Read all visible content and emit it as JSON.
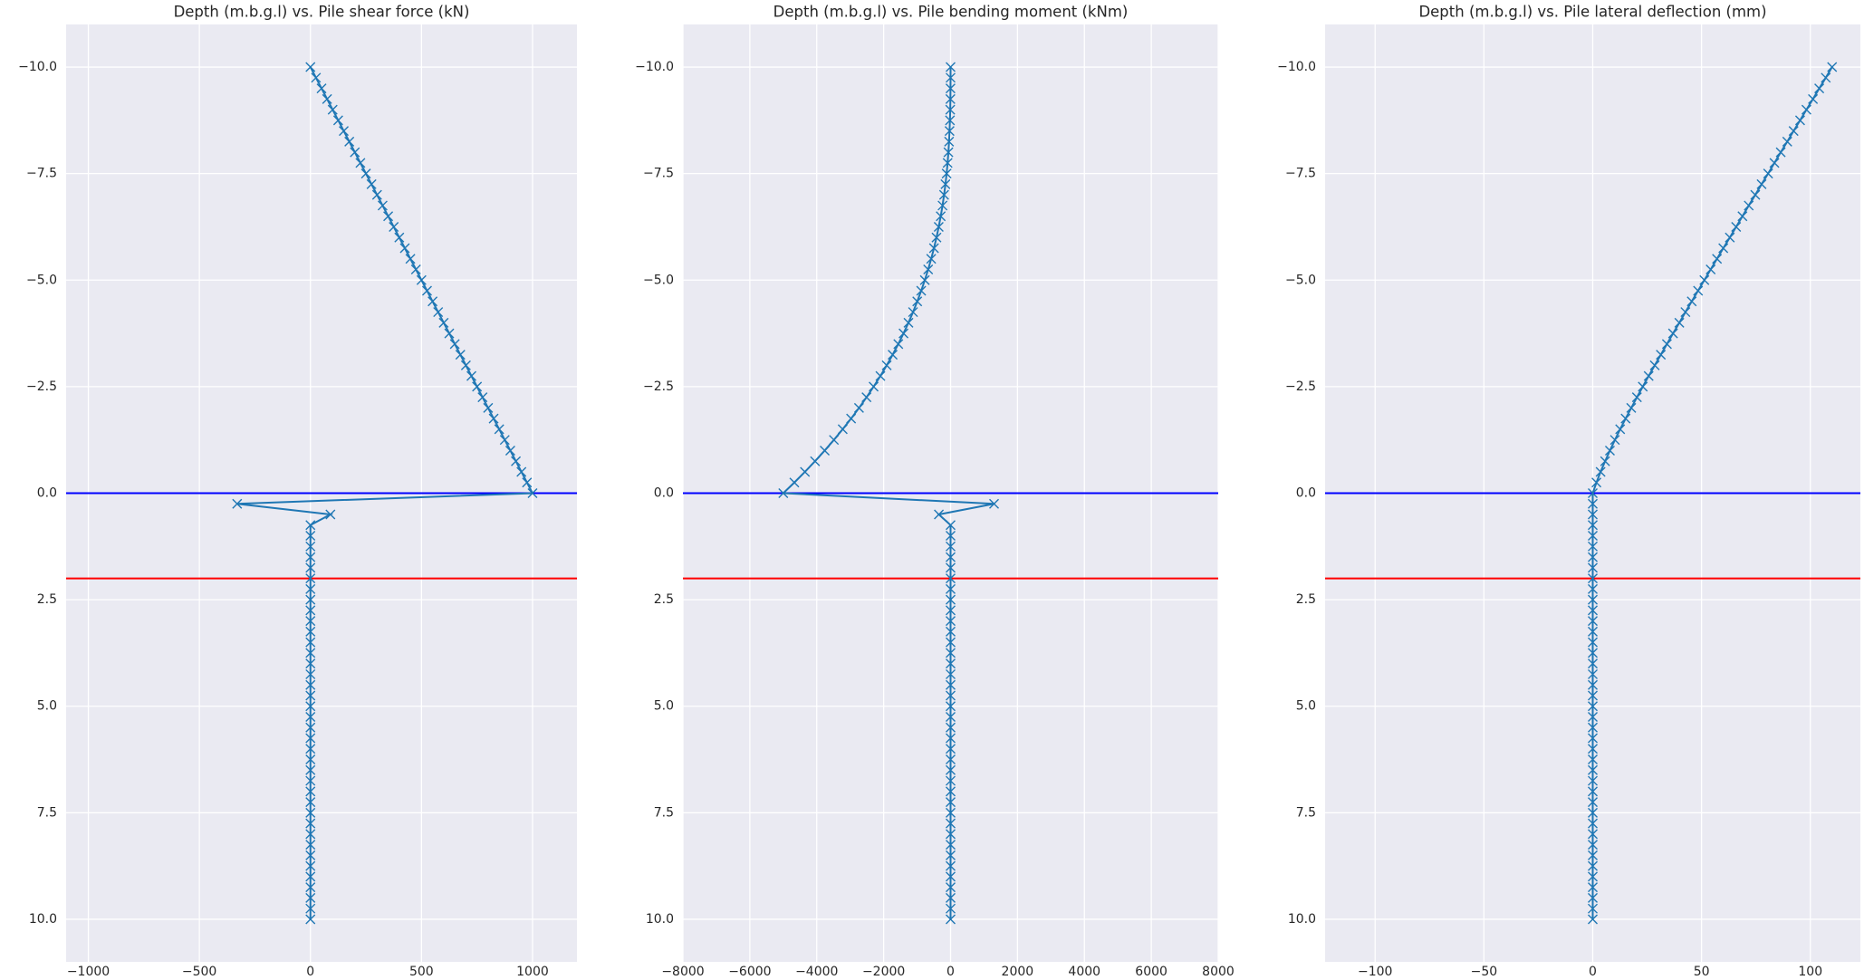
{
  "chart_data": [
    {
      "type": "line",
      "title": "Depth (m.b.g.l) vs. Pile shear force (kN)",
      "xlim": [
        -1100,
        1200
      ],
      "ylim": [
        11,
        -11
      ],
      "grid": true,
      "xticks": [
        {
          "value": -1000,
          "label": "−1000"
        },
        {
          "value": -500,
          "label": "−500"
        },
        0,
        500,
        1000
      ],
      "yticks": [
        {
          "value": -10,
          "label": "−10.0"
        },
        {
          "value": -7.5,
          "label": "−7.5"
        },
        {
          "value": -5,
          "label": "−5.0"
        },
        {
          "value": -2.5,
          "label": "−2.5"
        },
        {
          "value": 0,
          "label": "0.0"
        },
        {
          "value": 2.5,
          "label": "2.5"
        },
        {
          "value": 5,
          "label": "5.0"
        },
        {
          "value": 7.5,
          "label": "7.5"
        },
        {
          "value": 10,
          "label": "10.0"
        }
      ],
      "hlines": [
        {
          "value": 0,
          "color": "#0000ff"
        },
        {
          "value": 2,
          "color": "#ff0000"
        }
      ],
      "y": [
        -10,
        -9.75,
        -9.5,
        -9.25,
        -9,
        -8.75,
        -8.5,
        -8.25,
        -8,
        -7.75,
        -7.5,
        -7.25,
        -7,
        -6.75,
        -6.5,
        -6.25,
        -6,
        -5.75,
        -5.5,
        -5.25,
        -5,
        -4.75,
        -4.5,
        -4.25,
        -4,
        -3.75,
        -3.5,
        -3.25,
        -3,
        -2.75,
        -2.5,
        -2.25,
        -2,
        -1.75,
        -1.5,
        -1.25,
        -1,
        -0.75,
        -0.5,
        -0.25,
        0,
        0.25,
        0.5,
        0.75,
        1,
        1.25,
        1.5,
        1.75,
        2,
        2.25,
        2.5,
        2.75,
        3,
        3.25,
        3.5,
        3.75,
        4,
        4.25,
        4.5,
        4.75,
        5,
        5.25,
        5.5,
        5.75,
        6,
        6.25,
        6.5,
        6.75,
        7,
        7.25,
        7.5,
        7.75,
        8,
        8.25,
        8.5,
        8.75,
        9,
        9.25,
        9.5,
        9.75,
        10
      ],
      "series": [
        {
          "color": "#1f77b4",
          "x": [
            0,
            25,
            50,
            75,
            100,
            125,
            150,
            175,
            200,
            225,
            250,
            275,
            300,
            325,
            350,
            375,
            400,
            425,
            450,
            475,
            500,
            525,
            550,
            575,
            600,
            625,
            650,
            675,
            700,
            725,
            750,
            775,
            800,
            825,
            850,
            875,
            900,
            925,
            950,
            975,
            1000,
            -330,
            90,
            0,
            0,
            0,
            0,
            0,
            0,
            0,
            0,
            0,
            0,
            0,
            0,
            0,
            0,
            0,
            0,
            0,
            0,
            0,
            0,
            0,
            0,
            0,
            0,
            0,
            0,
            0,
            0,
            0,
            0,
            0,
            0,
            0,
            0,
            0,
            0,
            0,
            0
          ]
        }
      ]
    },
    {
      "type": "line",
      "title": "Depth (m.b.g.l) vs. Pile bending moment (kNm)",
      "xlim": [
        -8000,
        8000
      ],
      "ylim": [
        11,
        -11
      ],
      "grid": true,
      "xticks": [
        {
          "value": -8000,
          "label": "−8000"
        },
        {
          "value": -6000,
          "label": "−6000"
        },
        {
          "value": -4000,
          "label": "−4000"
        },
        {
          "value": -2000,
          "label": "−2000"
        },
        0,
        2000,
        4000,
        6000,
        8000
      ],
      "yticks": [
        {
          "value": -10,
          "label": "−10.0"
        },
        {
          "value": -7.5,
          "label": "−7.5"
        },
        {
          "value": -5,
          "label": "−5.0"
        },
        {
          "value": -2.5,
          "label": "−2.5"
        },
        {
          "value": 0,
          "label": "0.0"
        },
        {
          "value": 2.5,
          "label": "2.5"
        },
        {
          "value": 5,
          "label": "5.0"
        },
        {
          "value": 7.5,
          "label": "7.5"
        },
        {
          "value": 10,
          "label": "10.0"
        }
      ],
      "hlines": [
        {
          "value": 0,
          "color": "#0000ff"
        },
        {
          "value": 2,
          "color": "#ff0000"
        }
      ],
      "y": [
        -10,
        -9.75,
        -9.5,
        -9.25,
        -9,
        -8.75,
        -8.5,
        -8.25,
        -8,
        -7.75,
        -7.5,
        -7.25,
        -7,
        -6.75,
        -6.5,
        -6.25,
        -6,
        -5.75,
        -5.5,
        -5.25,
        -5,
        -4.75,
        -4.5,
        -4.25,
        -4,
        -3.75,
        -3.5,
        -3.25,
        -3,
        -2.75,
        -2.5,
        -2.25,
        -2,
        -1.75,
        -1.5,
        -1.25,
        -1,
        -0.75,
        -0.5,
        -0.25,
        0,
        0.25,
        0.5,
        0.75,
        1,
        1.25,
        1.5,
        1.75,
        2,
        2.25,
        2.5,
        2.75,
        3,
        3.25,
        3.5,
        3.75,
        4,
        4.25,
        4.5,
        4.75,
        5,
        5.25,
        5.5,
        5.75,
        6,
        6.25,
        6.5,
        6.75,
        7,
        7.25,
        7.5,
        7.75,
        8,
        8.25,
        8.5,
        8.75,
        9,
        9.25,
        9.5,
        9.75,
        10
      ],
      "series": [
        {
          "color": "#1f77b4",
          "x": [
            0,
            0,
            -2,
            -5,
            -10,
            -18,
            -30,
            -45,
            -65,
            -89,
            -118,
            -153,
            -194,
            -240,
            -294,
            -354,
            -421,
            -496,
            -579,
            -670,
            -770,
            -878,
            -996,
            -1122,
            -1259,
            -1406,
            -1562,
            -1731,
            -1909,
            -2098,
            -2300,
            -2513,
            -2737,
            -2974,
            -3224,
            -3487,
            -3762,
            -4051,
            -4353,
            -4670,
            -5000,
            1300,
            -350,
            0,
            0,
            0,
            0,
            0,
            0,
            0,
            0,
            0,
            0,
            0,
            0,
            0,
            0,
            0,
            0,
            0,
            0,
            0,
            0,
            0,
            0,
            0,
            0,
            0,
            0,
            0,
            0,
            0,
            0,
            0,
            0,
            0,
            0,
            0,
            0,
            0,
            0
          ]
        }
      ]
    },
    {
      "type": "line",
      "title": "Depth (m.b.g.l) vs. Pile lateral deflection (mm)",
      "xlim": [
        -123,
        123
      ],
      "ylim": [
        11,
        -11
      ],
      "grid": true,
      "xticks": [
        {
          "value": -100,
          "label": "−100"
        },
        {
          "value": -50,
          "label": "−50"
        },
        0,
        50,
        100
      ],
      "yticks": [
        {
          "value": -10,
          "label": "−10.0"
        },
        {
          "value": -7.5,
          "label": "−7.5"
        },
        {
          "value": -5,
          "label": "−5.0"
        },
        {
          "value": -2.5,
          "label": "−2.5"
        },
        {
          "value": 0,
          "label": "0.0"
        },
        {
          "value": 2.5,
          "label": "2.5"
        },
        {
          "value": 5,
          "label": "5.0"
        },
        {
          "value": 7.5,
          "label": "7.5"
        },
        {
          "value": 10,
          "label": "10.0"
        }
      ],
      "hlines": [
        {
          "value": 0,
          "color": "#0000ff"
        },
        {
          "value": 2,
          "color": "#ff0000"
        }
      ],
      "y": [
        -10,
        -9.75,
        -9.5,
        -9.25,
        -9,
        -8.75,
        -8.5,
        -8.25,
        -8,
        -7.75,
        -7.5,
        -7.25,
        -7,
        -6.75,
        -6.5,
        -6.25,
        -6,
        -5.75,
        -5.5,
        -5.25,
        -5,
        -4.75,
        -4.5,
        -4.25,
        -4,
        -3.75,
        -3.5,
        -3.25,
        -3,
        -2.75,
        -2.5,
        -2.25,
        -2,
        -1.75,
        -1.5,
        -1.25,
        -1,
        -0.75,
        -0.5,
        -0.25,
        0,
        0.25,
        0.5,
        0.75,
        1,
        1.25,
        1.5,
        1.75,
        2,
        2.25,
        2.5,
        2.75,
        3,
        3.25,
        3.5,
        3.75,
        4,
        4.25,
        4.5,
        4.75,
        5,
        5.25,
        5.5,
        5.75,
        6,
        6.25,
        6.5,
        6.75,
        7,
        7.25,
        7.5,
        7.75,
        8,
        8.25,
        8.5,
        8.75,
        9,
        9.25,
        9.5,
        9.75,
        10
      ],
      "series": [
        {
          "color": "#1f77b4",
          "x": [
            110,
            107.1,
            104.1,
            101.2,
            98.2,
            95.3,
            92.3,
            89.4,
            86.4,
            83.5,
            80.6,
            77.6,
            74.7,
            71.7,
            68.8,
            65.9,
            63,
            60,
            57.1,
            54.2,
            51.3,
            48.4,
            45.5,
            42.6,
            39.8,
            36.9,
            34.1,
            31.3,
            28.5,
            25.7,
            23,
            20.3,
            17.7,
            15.1,
            12.6,
            10.2,
            7.9,
            5.7,
            3.6,
            1.7,
            0,
            0,
            0,
            0,
            0,
            0,
            0,
            0,
            0,
            0,
            0,
            0,
            0,
            0,
            0,
            0,
            0,
            0,
            0,
            0,
            0,
            0,
            0,
            0,
            0,
            0,
            0,
            0,
            0,
            0,
            0,
            0,
            0,
            0,
            0,
            0,
            0,
            0,
            0,
            0,
            0
          ]
        }
      ]
    }
  ]
}
